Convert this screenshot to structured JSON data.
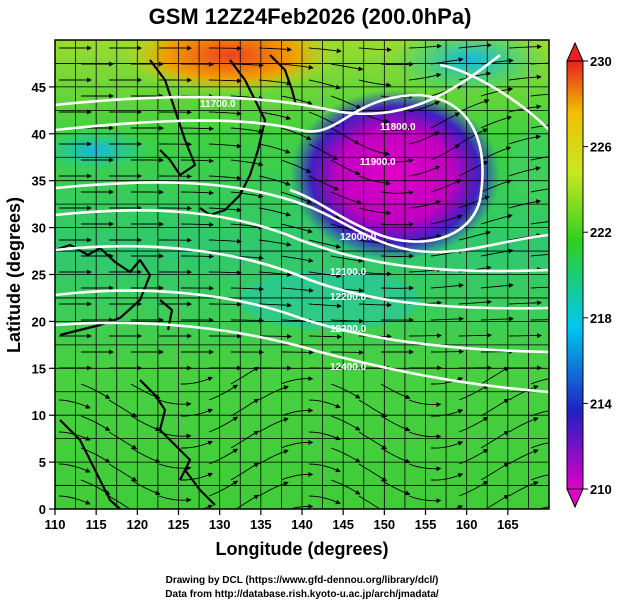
{
  "figure": {
    "title": "GSM 12Z24Feb2026 (200.0hPa)",
    "xlabel": "Longitude (degrees)",
    "ylabel": "Latitude  (degrees)",
    "credit_line1": "Drawing by DCL (https://www.gfd-dennou.org/library/dcl/)",
    "credit_line2": "Data from http://database.rish.kyoto-u.ac.jp/arch/jmadata/"
  },
  "axes": {
    "lon_range": [
      110,
      170
    ],
    "lat_range": [
      0,
      50
    ],
    "lon_ticks": [
      "110",
      "115",
      "120",
      "125",
      "130",
      "135",
      "140",
      "145",
      "150",
      "155",
      "160",
      "165"
    ],
    "lat_ticks": [
      "0",
      "5",
      "10",
      "15",
      "20",
      "25",
      "30",
      "35",
      "40",
      "45"
    ]
  },
  "colorbar": {
    "range": [
      210,
      230
    ],
    "ticks": [
      "210",
      "214",
      "218",
      "222",
      "226",
      "230"
    ],
    "stops": [
      "#e000c8",
      "#2020c0",
      "#00c8f0",
      "#30d020",
      "#c8e820",
      "#f0c000",
      "#e82020"
    ]
  },
  "contours": {
    "labels": [
      "11700.0",
      "11800.0",
      "11900.0",
      "12000.0",
      "12100.0",
      "12200.0",
      "12300.0",
      "12400.0"
    ]
  }
}
